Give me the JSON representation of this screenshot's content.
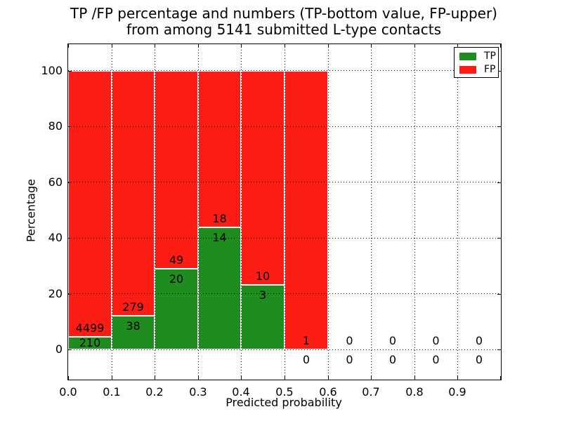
{
  "chart_data": {
    "type": "bar",
    "stacked": true,
    "title_line1": "TP /FP percentage and numbers (TP-bottom value, FP-upper)",
    "title_line2": "from among 5141 submitted L-type contacts",
    "total_contacts": 5141,
    "xlabel": "Predicted probability",
    "ylabel": "Percentage",
    "xlim": [
      0.0,
      1.0
    ],
    "ylim": [
      -10.8,
      109.4
    ],
    "xtick_values": [
      0.0,
      0.1,
      0.2,
      0.3,
      0.4,
      0.5,
      0.6,
      0.7,
      0.8,
      0.9
    ],
    "xtick_labels": [
      "0.0",
      "0.1",
      "0.2",
      "0.3",
      "0.4",
      "0.5",
      "0.6",
      "0.7",
      "0.8",
      "0.9"
    ],
    "ytick_values": [
      0,
      20,
      40,
      60,
      80,
      100
    ],
    "ytick_labels": [
      "0",
      "20",
      "40",
      "60",
      "80",
      "100"
    ],
    "grid": true,
    "bin_width": 0.1,
    "bins": [
      {
        "x0": 0.0,
        "x1": 0.1,
        "tp": 210,
        "fp": 4499
      },
      {
        "x0": 0.1,
        "x1": 0.2,
        "tp": 38,
        "fp": 279
      },
      {
        "x0": 0.2,
        "x1": 0.3,
        "tp": 20,
        "fp": 49
      },
      {
        "x0": 0.3,
        "x1": 0.4,
        "tp": 14,
        "fp": 18
      },
      {
        "x0": 0.4,
        "x1": 0.5,
        "tp": 3,
        "fp": 10
      },
      {
        "x0": 0.5,
        "x1": 0.6,
        "tp": 0,
        "fp": 1
      },
      {
        "x0": 0.6,
        "x1": 0.7,
        "tp": 0,
        "fp": 0
      },
      {
        "x0": 0.7,
        "x1": 0.8,
        "tp": 0,
        "fp": 0
      },
      {
        "x0": 0.8,
        "x1": 0.9,
        "tp": 0,
        "fp": 0
      },
      {
        "x0": 0.9,
        "x1": 1.0,
        "tp": 0,
        "fp": 0
      }
    ],
    "legend": {
      "position": "upper right",
      "entries": [
        {
          "label": "TP",
          "color": "#1e8c1e"
        },
        {
          "label": "FP",
          "color": "#fb1c13"
        }
      ]
    },
    "colors": {
      "tp": "#1e8c1e",
      "fp": "#fb1c13",
      "grid": "#000000",
      "spine": "#000000",
      "background": "#ffffff"
    }
  }
}
